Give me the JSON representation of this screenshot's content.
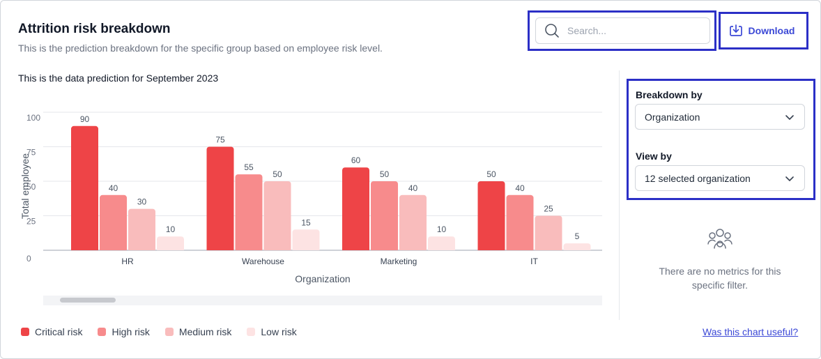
{
  "header": {
    "title": "Attrition risk breakdown",
    "subtitle": "This is the prediction breakdown for the specific group based on employee risk level."
  },
  "search": {
    "placeholder": "Search...",
    "value": "",
    "icon": "search-icon"
  },
  "download": {
    "label": "Download",
    "icon": "download-icon"
  },
  "chart_caption": "This is the data prediction for September 2023",
  "chart_data": {
    "type": "bar",
    "categories": [
      "HR",
      "Warehouse",
      "Marketing",
      "IT"
    ],
    "series": [
      {
        "name": "Critical risk",
        "values": [
          90,
          75,
          60,
          50
        ],
        "color": "#ee4447"
      },
      {
        "name": "High risk",
        "values": [
          40,
          55,
          50,
          40
        ],
        "color": "#f78b8c"
      },
      {
        "name": "Medium risk",
        "values": [
          30,
          50,
          40,
          25
        ],
        "color": "#f9bcbc"
      },
      {
        "name": "Low risk",
        "values": [
          10,
          15,
          10,
          5
        ],
        "color": "#fde3e3"
      }
    ],
    "xlabel": "Organization",
    "ylabel": "Total employee",
    "yticks": [
      0,
      25,
      50,
      75,
      100
    ],
    "ylim": [
      0,
      100
    ],
    "grid": true,
    "legend_position": "bottom-left"
  },
  "feedback_link": "Was this chart useful?",
  "filters": {
    "breakdown_label": "Breakdown by",
    "breakdown_value": "Organization",
    "view_label": "View by",
    "view_value": "12 selected organization"
  },
  "empty_state": {
    "icon": "users-icon",
    "text": "There are no metrics for this specific filter."
  },
  "colors": {
    "accent": "#3b48d6",
    "highlight_border": "#2b2fc6"
  }
}
